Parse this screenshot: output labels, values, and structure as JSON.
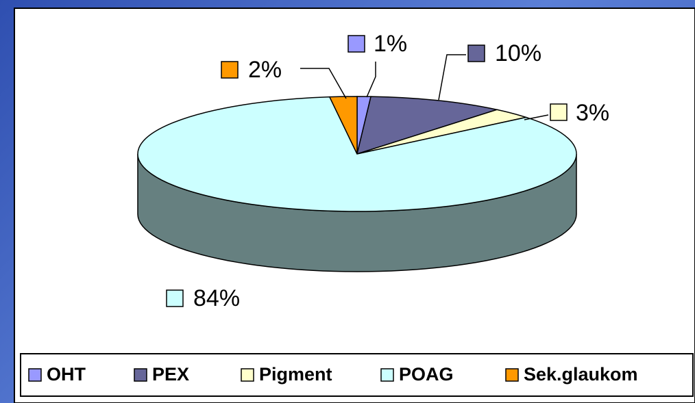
{
  "chart_data": {
    "type": "pie",
    "categories": [
      "OHT",
      "PEX",
      "Pigment",
      "POAG",
      "Sek.glaukom"
    ],
    "values": [
      1,
      10,
      3,
      84,
      2
    ],
    "value_labels": [
      "1%",
      "10%",
      "3%",
      "84%",
      "2%"
    ],
    "colors": [
      "#9999ff",
      "#666699",
      "#ffffcc",
      "#ccffff",
      "#ff9900"
    ],
    "legend": "bottom"
  }
}
